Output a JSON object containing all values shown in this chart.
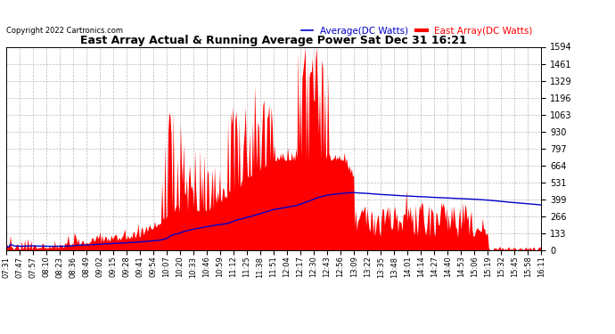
{
  "title": "East Array Actual & Running Average Power Sat Dec 31 16:21",
  "copyright": "Copyright 2022 Cartronics.com",
  "legend_avg": "Average(DC Watts)",
  "legend_east": "East Array(DC Watts)",
  "yticks": [
    0.0,
    132.9,
    265.7,
    398.6,
    531.4,
    664.3,
    797.1,
    930.0,
    1062.8,
    1195.7,
    1328.6,
    1461.4,
    1594.3
  ],
  "ymax": 1594.3,
  "bg_color": "#ffffff",
  "plot_bg_color": "#ffffff",
  "grid_color": "#aaaaaa",
  "area_color": "#ff0000",
  "avg_line_color": "#0000cc",
  "title_color": "#000000",
  "copyright_color": "#000000",
  "xtick_labels": [
    "07:31",
    "07:47",
    "07:57",
    "08:10",
    "08:23",
    "08:36",
    "08:49",
    "09:02",
    "09:15",
    "09:28",
    "09:41",
    "09:54",
    "10:07",
    "10:20",
    "10:33",
    "10:46",
    "10:59",
    "11:12",
    "11:25",
    "11:38",
    "11:51",
    "12:04",
    "12:17",
    "12:30",
    "12:43",
    "12:56",
    "13:09",
    "13:22",
    "13:35",
    "13:48",
    "14:01",
    "14:14",
    "14:27",
    "14:40",
    "14:53",
    "15:06",
    "15:19",
    "15:32",
    "15:45",
    "15:58",
    "16:11"
  ],
  "n_points": 520,
  "seed": 7
}
